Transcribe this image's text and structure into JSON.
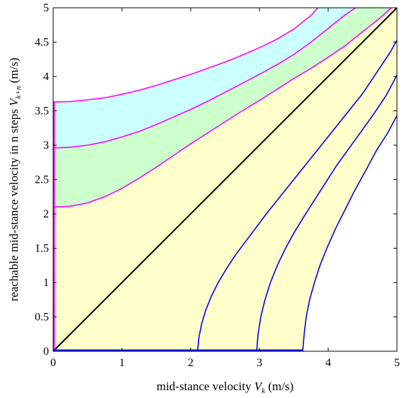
{
  "chart_data": {
    "type": "area",
    "xlabel": {
      "text": "mid-stance velocity ",
      "symbol": "V",
      "sub": "k",
      "unit": " (m/s)"
    },
    "ylabel": {
      "text": "reachable mid-stance velocity in n steps ",
      "symbol": "V",
      "sub": "k+n",
      "unit": " (m/s)"
    },
    "xlim": [
      0,
      5
    ],
    "ylim": [
      0,
      5
    ],
    "xticks": [
      "0",
      "1",
      "2",
      "3",
      "4",
      "5"
    ],
    "yticks": [
      "0",
      "0.5",
      "1",
      "1.5",
      "2",
      "2.5",
      "3",
      "3.5",
      "4",
      "4.5",
      "5"
    ],
    "grid": false,
    "colors": {
      "band_inner": "#ffffcc",
      "band_middle": "#ccffcc",
      "band_outer": "#ccffff",
      "upper_curve": "#ff00ff",
      "lower_curve": "#0000ff",
      "diagonal": "#000000"
    },
    "upper_bounds": [
      {
        "name": "",
        "x": [
          0,
          0.25,
          0.5,
          0.75,
          1,
          1.25,
          1.5,
          1.75,
          2,
          2.25,
          2.5,
          2.75,
          3,
          3.25,
          3.5,
          3.75,
          3.85
        ],
        "y": [
          3.63,
          3.635,
          3.66,
          3.69,
          3.74,
          3.8,
          3.87,
          3.95,
          4.03,
          4.12,
          4.21,
          4.31,
          4.42,
          4.54,
          4.69,
          4.89,
          5.0
        ]
      },
      {
        "name": "",
        "x": [
          0,
          0.25,
          0.5,
          0.75,
          1,
          1.25,
          1.5,
          1.75,
          2,
          2.25,
          2.5,
          2.75,
          3,
          3.25,
          3.5,
          3.75,
          4,
          4.25,
          4.4
        ],
        "y": [
          2.96,
          2.97,
          3.0,
          3.05,
          3.12,
          3.2,
          3.3,
          3.41,
          3.52,
          3.64,
          3.77,
          3.9,
          4.03,
          4.17,
          4.32,
          4.5,
          4.7,
          4.9,
          5.0
        ]
      },
      {
        "name": "",
        "x": [
          0,
          0.25,
          0.5,
          0.75,
          1,
          1.25,
          1.5,
          1.75,
          2,
          2.25,
          2.5,
          2.75,
          3,
          3.25,
          3.5,
          3.75,
          4,
          4.25,
          4.5,
          4.75,
          4.92
        ],
        "y": [
          2.1,
          2.11,
          2.16,
          2.25,
          2.37,
          2.52,
          2.68,
          2.85,
          3.02,
          3.18,
          3.34,
          3.5,
          3.65,
          3.81,
          3.97,
          4.12,
          4.28,
          4.45,
          4.65,
          4.85,
          5.0
        ]
      }
    ],
    "lower_bounds": [
      {
        "name": "",
        "x": [
          2.1,
          2.12,
          2.16,
          2.22,
          2.3,
          2.4,
          2.52,
          2.65,
          2.8,
          2.95,
          3.1,
          3.3,
          3.5,
          3.7,
          3.9,
          4.1,
          4.3,
          4.5,
          4.7,
          4.9,
          5.0
        ],
        "y": [
          0,
          0.2,
          0.4,
          0.6,
          0.8,
          1.0,
          1.2,
          1.4,
          1.6,
          1.8,
          2.0,
          2.25,
          2.5,
          2.75,
          3.0,
          3.25,
          3.5,
          3.75,
          4.05,
          4.35,
          4.53
        ]
      },
      {
        "name": "",
        "x": [
          2.96,
          2.98,
          3.02,
          3.08,
          3.16,
          3.26,
          3.38,
          3.5,
          3.64,
          3.8,
          3.96,
          4.12,
          4.3,
          4.48,
          4.66,
          4.84,
          5.0
        ],
        "y": [
          0,
          0.25,
          0.5,
          0.75,
          1.0,
          1.25,
          1.5,
          1.72,
          1.95,
          2.2,
          2.45,
          2.7,
          2.95,
          3.2,
          3.45,
          3.72,
          4.02
        ]
      },
      {
        "name": "",
        "x": [
          3.63,
          3.65,
          3.68,
          3.73,
          3.8,
          3.88,
          3.98,
          4.1,
          4.24,
          4.38,
          4.54,
          4.7,
          4.86,
          5.0
        ],
        "y": [
          0,
          0.25,
          0.5,
          0.75,
          1.0,
          1.25,
          1.5,
          1.77,
          2.05,
          2.33,
          2.62,
          2.92,
          3.17,
          3.43
        ]
      }
    ]
  }
}
